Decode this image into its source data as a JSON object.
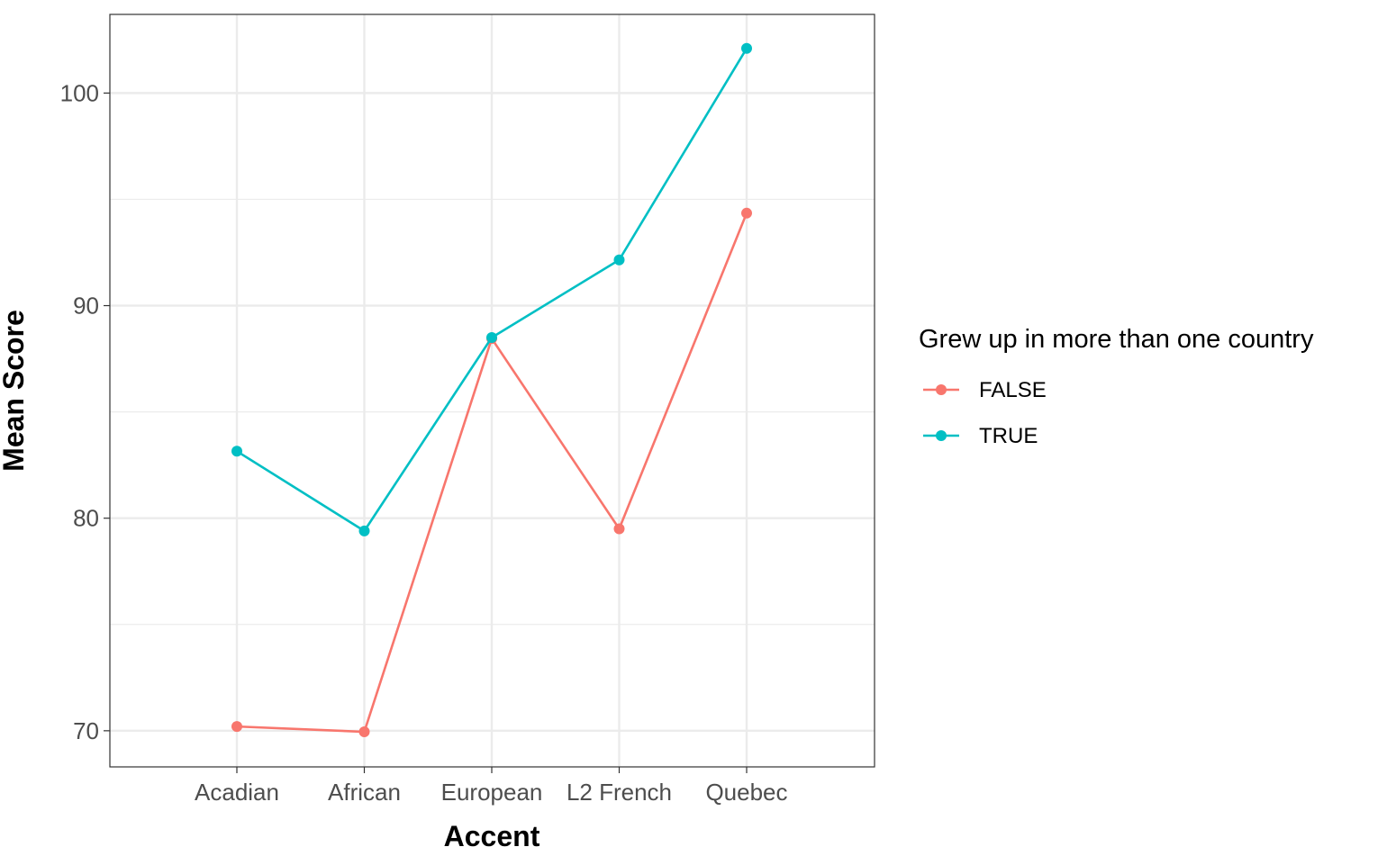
{
  "chart_data": {
    "type": "line",
    "title": "",
    "xlabel": "Accent",
    "ylabel": "Mean Score",
    "categories": [
      "Acadian",
      "African",
      "European",
      "L2 French",
      "Quebec"
    ],
    "ylim": [
      68.3,
      103.7
    ],
    "yticks": [
      70,
      80,
      90,
      100
    ],
    "y_minor_ticks": [
      75,
      85,
      95
    ],
    "grid": true,
    "legend": {
      "title": "Grew up in more than one country",
      "placement": "right"
    },
    "series": [
      {
        "name": "FALSE",
        "color": "#F8766D",
        "values": [
          70.2,
          69.95,
          88.45,
          79.5,
          94.35
        ]
      },
      {
        "name": "TRUE",
        "color": "#00BFC4",
        "values": [
          83.15,
          79.4,
          88.5,
          92.15,
          102.1
        ]
      }
    ]
  }
}
